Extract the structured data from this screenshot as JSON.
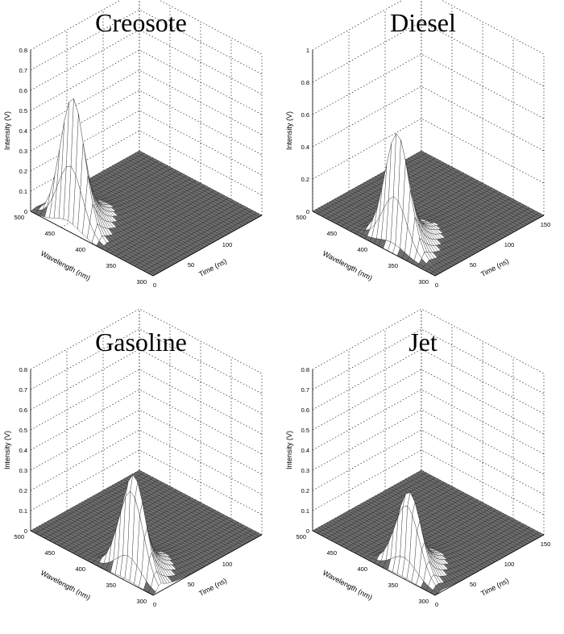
{
  "chart_data": [
    {
      "type": "surface",
      "title": "Creosote",
      "xlabel": "Time (ns)",
      "ylabel": "Wavelength (nm)",
      "zlabel": "Intensity (V)",
      "xlim": [
        0,
        150
      ],
      "ylim": [
        300,
        500
      ],
      "zlim": [
        0,
        0.8
      ],
      "x_ticks": [
        "0",
        "50",
        "100"
      ],
      "y_ticks": [
        "500",
        "450",
        "400",
        "350",
        "300"
      ],
      "z_ticks": [
        "0",
        "0.1",
        "0.2",
        "0.3",
        "0.4",
        "0.5",
        "0.6",
        "0.7",
        "0.8"
      ],
      "peak": {
        "time_ns": 8,
        "wavelength_nm": 440,
        "intensity_v": 0.65
      },
      "grid": true
    },
    {
      "type": "surface",
      "title": "Diesel",
      "xlabel": "Time (ns)",
      "ylabel": "Wavelength (nm)",
      "zlabel": "Intensity (V)",
      "xlim": [
        0,
        150
      ],
      "ylim": [
        300,
        500
      ],
      "zlim": [
        0,
        1
      ],
      "x_ticks": [
        "0",
        "50",
        "100",
        "150"
      ],
      "y_ticks": [
        "500",
        "450",
        "400",
        "350",
        "300"
      ],
      "z_ticks": [
        "0",
        "0.2",
        "0.4",
        "0.6",
        "0.8",
        "1"
      ],
      "peak": {
        "time_ns": 12,
        "wavelength_nm": 375,
        "intensity_v": 0.72
      },
      "grid": true
    },
    {
      "type": "surface",
      "title": "Gasoline",
      "xlabel": "Time (ns)",
      "ylabel": "Wavelength (nm)",
      "zlabel": "Intensity (V)",
      "xlim": [
        0,
        150
      ],
      "ylim": [
        300,
        500
      ],
      "zlim": [
        0,
        0.8
      ],
      "x_ticks": [
        "0",
        "50",
        "100"
      ],
      "y_ticks": [
        "500",
        "450",
        "400",
        "350",
        "300"
      ],
      "z_ticks": [
        "0",
        "0.1",
        "0.2",
        "0.3",
        "0.4",
        "0.5",
        "0.6",
        "0.7",
        "0.8"
      ],
      "peak": {
        "time_ns": 10,
        "wavelength_nm": 345,
        "intensity_v": 0.55
      },
      "grid": true
    },
    {
      "type": "surface",
      "title": "Jet",
      "xlabel": "Time (ns)",
      "ylabel": "Wavelength (nm)",
      "zlabel": "Intensity (V)",
      "xlim": [
        0,
        150
      ],
      "ylim": [
        300,
        500
      ],
      "zlim": [
        0,
        0.8
      ],
      "x_ticks": [
        "0",
        "50",
        "100",
        "150"
      ],
      "y_ticks": [
        "500",
        "450",
        "400",
        "350",
        "300"
      ],
      "z_ticks": [
        "0",
        "0.1",
        "0.2",
        "0.3",
        "0.4",
        "0.5",
        "0.6",
        "0.7",
        "0.8"
      ],
      "peak": {
        "time_ns": 10,
        "wavelength_nm": 355,
        "intensity_v": 0.44
      },
      "grid": true
    }
  ]
}
